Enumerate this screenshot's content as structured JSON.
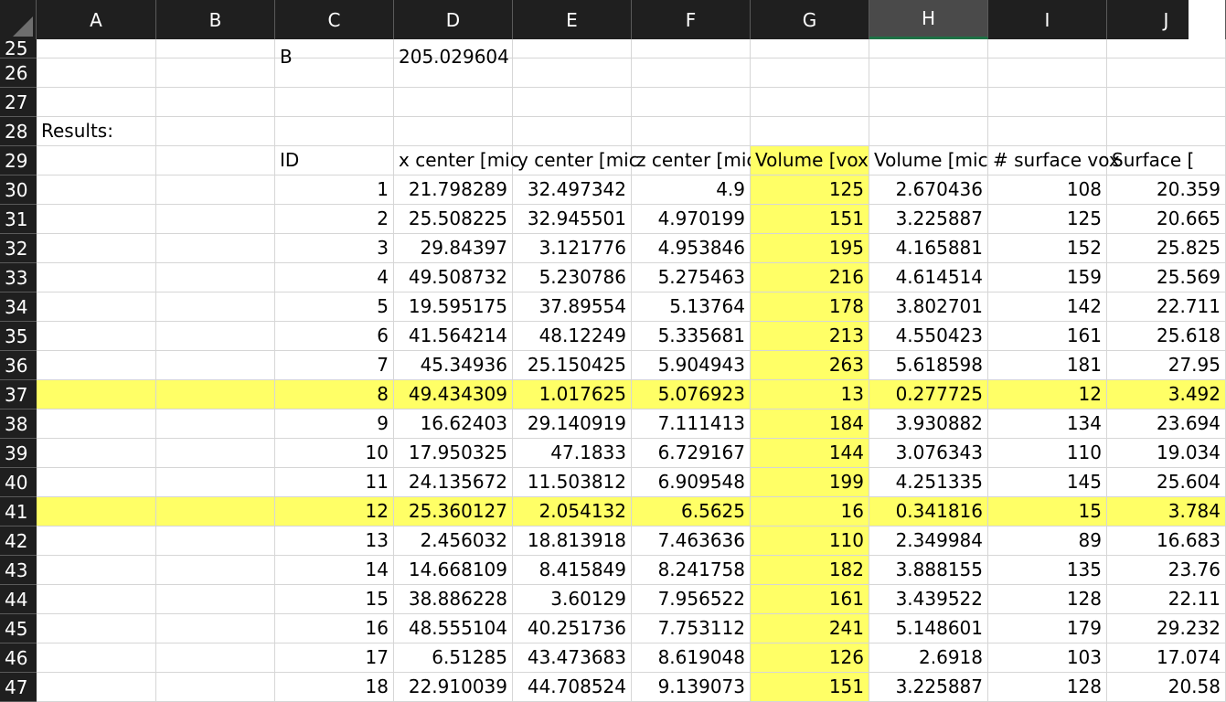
{
  "columns": [
    "A",
    "B",
    "C",
    "D",
    "E",
    "F",
    "G",
    "H",
    "I",
    "J"
  ],
  "selected_column": "H",
  "highlight_color": "#ffff66",
  "header_bg": "#1f1f1f",
  "rows": [
    {
      "row": "25",
      "cells": {
        "C": "B",
        "D": "205.029604"
      }
    },
    {
      "row": "26",
      "cells": {}
    },
    {
      "row": "27",
      "cells": {}
    },
    {
      "row": "28",
      "cells": {
        "A": "Results:"
      }
    },
    {
      "row": "29",
      "cells": {
        "C": "ID",
        "D": "x center [mic",
        "E": "y center [mic",
        "F": "z center [mic",
        "G": "Volume [vox",
        "H": "Volume [mic",
        "I": "# surface vox",
        "J": "Surface ["
      }
    },
    {
      "row": "30",
      "cells": {
        "C": "1",
        "D": "21.798289",
        "E": "32.497342",
        "F": "4.9",
        "G": "125",
        "H": "2.670436",
        "I": "108",
        "J": "20.359"
      }
    },
    {
      "row": "31",
      "cells": {
        "C": "2",
        "D": "25.508225",
        "E": "32.945501",
        "F": "4.970199",
        "G": "151",
        "H": "3.225887",
        "I": "125",
        "J": "20.665"
      }
    },
    {
      "row": "32",
      "cells": {
        "C": "3",
        "D": "29.84397",
        "E": "3.121776",
        "F": "4.953846",
        "G": "195",
        "H": "4.165881",
        "I": "152",
        "J": "25.825"
      }
    },
    {
      "row": "33",
      "cells": {
        "C": "4",
        "D": "49.508732",
        "E": "5.230786",
        "F": "5.275463",
        "G": "216",
        "H": "4.614514",
        "I": "159",
        "J": "25.569"
      }
    },
    {
      "row": "34",
      "cells": {
        "C": "5",
        "D": "19.595175",
        "E": "37.89554",
        "F": "5.13764",
        "G": "178",
        "H": "3.802701",
        "I": "142",
        "J": "22.711"
      }
    },
    {
      "row": "35",
      "cells": {
        "C": "6",
        "D": "41.564214",
        "E": "48.12249",
        "F": "5.335681",
        "G": "213",
        "H": "4.550423",
        "I": "161",
        "J": "25.618"
      }
    },
    {
      "row": "36",
      "cells": {
        "C": "7",
        "D": "45.34936",
        "E": "25.150425",
        "F": "5.904943",
        "G": "263",
        "H": "5.618598",
        "I": "181",
        "J": "27.95"
      }
    },
    {
      "row": "37",
      "highlight": true,
      "cells": {
        "C": "8",
        "D": "49.434309",
        "E": "1.017625",
        "F": "5.076923",
        "G": "13",
        "H": "0.277725",
        "I": "12",
        "J": "3.492"
      }
    },
    {
      "row": "38",
      "cells": {
        "C": "9",
        "D": "16.62403",
        "E": "29.140919",
        "F": "7.111413",
        "G": "184",
        "H": "3.930882",
        "I": "134",
        "J": "23.694"
      }
    },
    {
      "row": "39",
      "cells": {
        "C": "10",
        "D": "17.950325",
        "E": "47.1833",
        "F": "6.729167",
        "G": "144",
        "H": "3.076343",
        "I": "110",
        "J": "19.034"
      }
    },
    {
      "row": "40",
      "cells": {
        "C": "11",
        "D": "24.135672",
        "E": "11.503812",
        "F": "6.909548",
        "G": "199",
        "H": "4.251335",
        "I": "145",
        "J": "25.604"
      }
    },
    {
      "row": "41",
      "highlight": true,
      "cells": {
        "C": "12",
        "D": "25.360127",
        "E": "2.054132",
        "F": "6.5625",
        "G": "16",
        "H": "0.341816",
        "I": "15",
        "J": "3.784"
      }
    },
    {
      "row": "42",
      "cells": {
        "C": "13",
        "D": "2.456032",
        "E": "18.813918",
        "F": "7.463636",
        "G": "110",
        "H": "2.349984",
        "I": "89",
        "J": "16.683"
      }
    },
    {
      "row": "43",
      "cells": {
        "C": "14",
        "D": "14.668109",
        "E": "8.415849",
        "F": "8.241758",
        "G": "182",
        "H": "3.888155",
        "I": "135",
        "J": "23.76"
      }
    },
    {
      "row": "44",
      "cells": {
        "C": "15",
        "D": "38.886228",
        "E": "3.60129",
        "F": "7.956522",
        "G": "161",
        "H": "3.439522",
        "I": "128",
        "J": "22.11"
      }
    },
    {
      "row": "45",
      "cells": {
        "C": "16",
        "D": "48.555104",
        "E": "40.251736",
        "F": "7.753112",
        "G": "241",
        "H": "5.148601",
        "I": "179",
        "J": "29.232"
      }
    },
    {
      "row": "46",
      "cells": {
        "C": "17",
        "D": "6.51285",
        "E": "43.473683",
        "F": "8.619048",
        "G": "126",
        "H": "2.6918",
        "I": "103",
        "J": "17.074"
      }
    },
    {
      "row": "47",
      "cells": {
        "C": "18",
        "D": "22.910039",
        "E": "44.708524",
        "F": "9.139073",
        "G": "151",
        "H": "3.225887",
        "I": "128",
        "J": "20.58"
      }
    }
  ]
}
